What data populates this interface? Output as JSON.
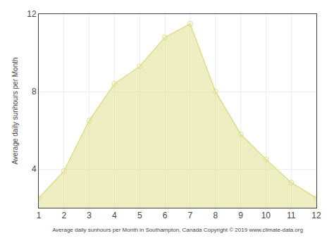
{
  "chart_data": {
    "type": "area",
    "x": [
      1,
      2,
      3,
      4,
      5,
      6,
      7,
      8,
      9,
      10,
      11,
      12
    ],
    "values": [
      2.5,
      3.9,
      6.5,
      8.4,
      9.3,
      10.8,
      11.5,
      8.0,
      5.8,
      4.5,
      3.3,
      2.5
    ],
    "color": "#DDDD88",
    "marker": "circle-open",
    "xlabel": "Average daily sunhours per Month in Southampton, Canada Copyright © 2019 www.climate-data.org",
    "ylabel": "Average daily sunhours per Month",
    "xlim": [
      1,
      12
    ],
    "ylim": [
      2,
      12
    ],
    "xticks": [
      1,
      2,
      3,
      4,
      5,
      6,
      7,
      8,
      9,
      10,
      11,
      12
    ],
    "yticks": [
      4,
      8,
      12
    ],
    "grid": true
  }
}
